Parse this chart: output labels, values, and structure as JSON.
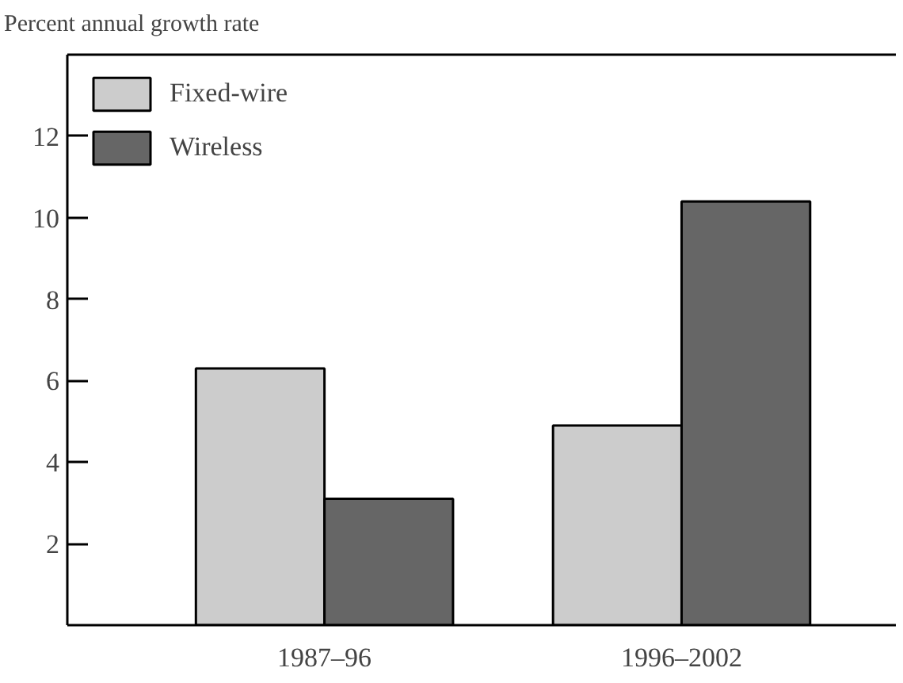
{
  "chart_data": {
    "type": "bar",
    "ylabel": "Percent annual growth rate",
    "categories": [
      "1987–96",
      "1996–2002"
    ],
    "series": [
      {
        "name": "Fixed-wire",
        "color": "#cccccc",
        "values": [
          6.3,
          4.9
        ]
      },
      {
        "name": "Wireless",
        "color": "#666666",
        "values": [
          3.1,
          10.4
        ]
      }
    ],
    "ylim": [
      0,
      14
    ],
    "yticks": [
      2,
      4,
      6,
      8,
      10,
      12
    ],
    "grid": false,
    "legend": "top left"
  }
}
